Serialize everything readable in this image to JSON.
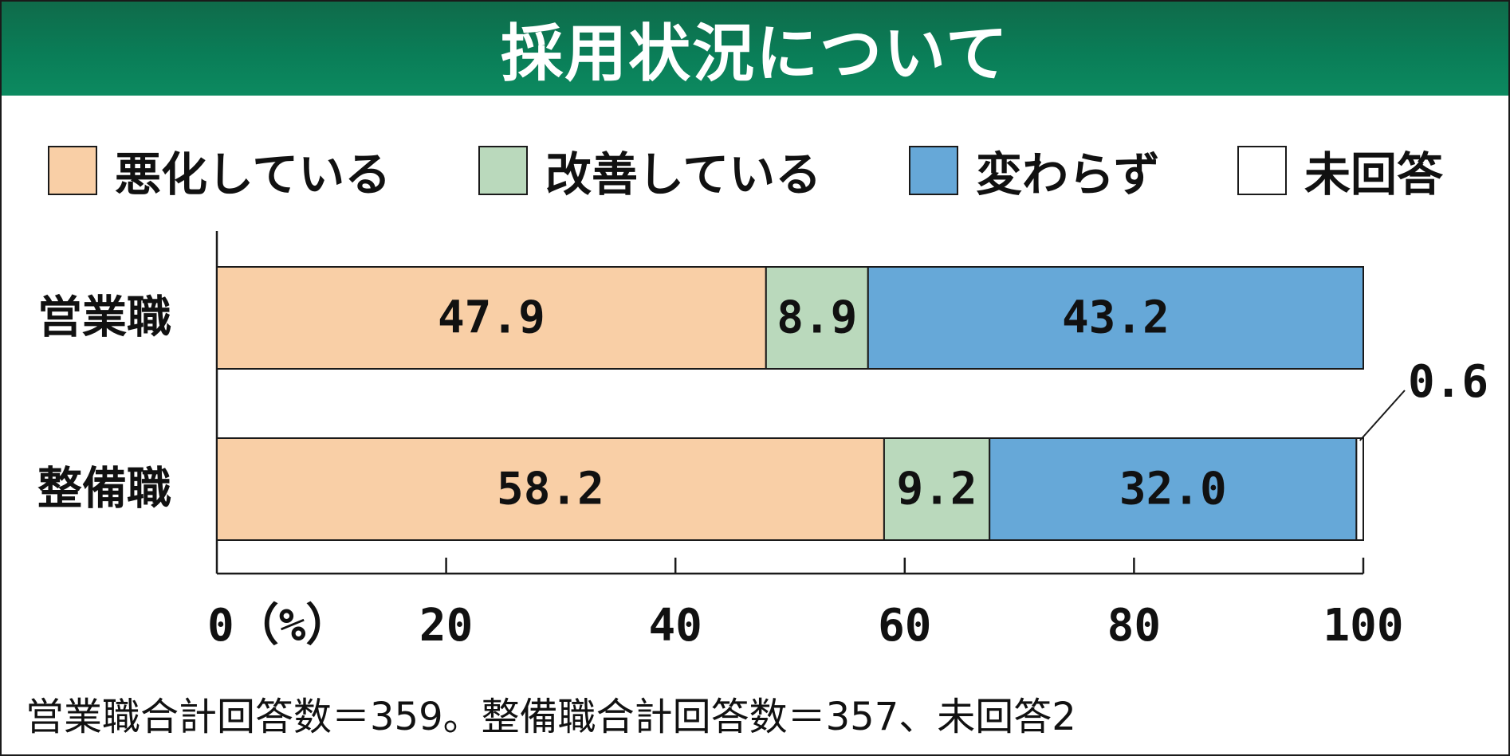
{
  "chart_data": {
    "type": "bar",
    "orientation": "horizontal",
    "stacked": true,
    "title": "採用状況について",
    "categories": [
      "営業職",
      "整備職"
    ],
    "series": [
      {
        "name": "悪化している",
        "values": [
          47.9,
          58.2
        ],
        "color": "#f9cfa6"
      },
      {
        "name": "改善している",
        "values": [
          8.9,
          9.2
        ],
        "color": "#bad9bc"
      },
      {
        "name": "変わらず",
        "values": [
          43.2,
          32.0
        ],
        "color": "#66a8d8"
      },
      {
        "name": "未回答",
        "values": [
          0,
          0.6
        ],
        "color": "#ffffff"
      }
    ],
    "value_labels": [
      [
        "47.9",
        "58.2"
      ],
      [
        "8.9",
        "9.2"
      ],
      [
        "43.2",
        "32.0"
      ],
      [
        "",
        "0.6"
      ]
    ],
    "x_ticks": [
      0,
      20,
      40,
      60,
      80,
      100
    ],
    "x_tick_labels": [
      "0（%）",
      "20",
      "40",
      "60",
      "80",
      "100"
    ],
    "xlim": [
      0,
      100
    ],
    "legend_position": "top",
    "grid": false,
    "footnote": "営業職合計回答数＝359。整備職合計回答数＝357、未回答2"
  }
}
